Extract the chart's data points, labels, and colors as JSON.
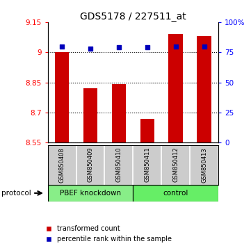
{
  "title": "GDS5178 / 227511_at",
  "samples": [
    "GSM850408",
    "GSM850409",
    "GSM850410",
    "GSM850411",
    "GSM850412",
    "GSM850413"
  ],
  "red_values": [
    9.0,
    8.82,
    8.84,
    8.67,
    9.09,
    9.08
  ],
  "blue_values": [
    80,
    78,
    79,
    79,
    80,
    80
  ],
  "ylim_left": [
    8.55,
    9.15
  ],
  "ylim_right": [
    0,
    100
  ],
  "yticks_left": [
    8.55,
    8.7,
    8.85,
    9.0,
    9.15
  ],
  "ytick_labels_left": [
    "8.55",
    "8.7",
    "8.85",
    "9",
    "9.15"
  ],
  "yticks_right": [
    0,
    25,
    50,
    75,
    100
  ],
  "ytick_labels_right": [
    "0",
    "25",
    "50",
    "75",
    "100%"
  ],
  "grid_values": [
    9.0,
    8.85,
    8.7,
    8.55
  ],
  "groups": [
    {
      "label": "PBEF knockdown",
      "start": 0,
      "end": 3,
      "color": "#88ee88"
    },
    {
      "label": "control",
      "start": 3,
      "end": 6,
      "color": "#66ee66"
    }
  ],
  "protocol_label": "protocol",
  "bar_color": "#cc0000",
  "blue_color": "#0000bb",
  "legend_items": [
    "transformed count",
    "percentile rank within the sample"
  ],
  "bar_width": 0.5,
  "title_fontsize": 10,
  "tick_fontsize": 7.5,
  "label_area_color": "#cccccc",
  "group_border_color": "#000000"
}
